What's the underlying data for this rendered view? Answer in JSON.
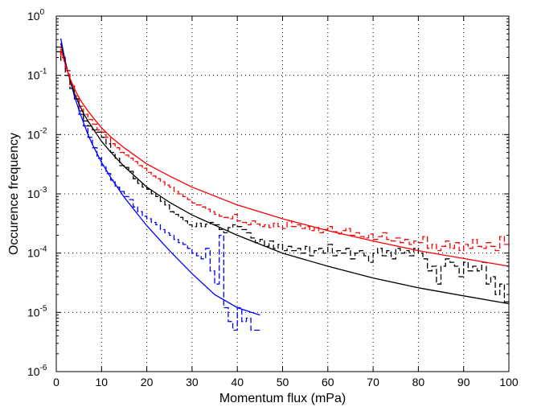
{
  "chart_data": {
    "type": "line",
    "title": "",
    "xlabel": "Momentum flux (mPa)",
    "ylabel": "Occurence frequency",
    "xlim": [
      0,
      100
    ],
    "ylim": [
      1e-06,
      1
    ],
    "yscale": "log",
    "grid": true,
    "x_ticks": [
      "0",
      "10",
      "20",
      "30",
      "40",
      "50",
      "60",
      "70",
      "80",
      "90",
      "100"
    ],
    "y_ticks": [
      {
        "base": "10",
        "exp": "-6",
        "value": 1e-06
      },
      {
        "base": "10",
        "exp": "-5",
        "value": 1e-05
      },
      {
        "base": "10",
        "exp": "-4",
        "value": 0.0001
      },
      {
        "base": "10",
        "exp": "-3",
        "value": 0.001
      },
      {
        "base": "10",
        "exp": "-2",
        "value": 0.01
      },
      {
        "base": "10",
        "exp": "-1",
        "value": 0.1
      },
      {
        "base": "10",
        "exp": "0",
        "value": 1
      }
    ],
    "series": [
      {
        "kind": "histogram",
        "color": "#0000ff",
        "style": "dashed",
        "bin_width": 1,
        "x": [
          0,
          1,
          2,
          3,
          4,
          5,
          6,
          7,
          8,
          9,
          10,
          11,
          12,
          13,
          14,
          15,
          16,
          17,
          18,
          19,
          20,
          21,
          22,
          23,
          24,
          25,
          26,
          27,
          28,
          29,
          30,
          31,
          32,
          33,
          34,
          35,
          36,
          37,
          38,
          39,
          40,
          41,
          42,
          43,
          44
        ],
        "y": [
          0.3,
          0.2,
          0.12,
          0.07,
          0.04,
          0.022,
          0.014,
          0.009,
          0.006,
          0.004,
          0.003,
          0.0022,
          0.0017,
          0.0013,
          0.0011,
          0.0009,
          0.0008,
          0.0006,
          0.0005,
          0.00042,
          0.00038,
          0.00033,
          0.0003,
          0.00025,
          0.00022,
          0.0002,
          0.00017,
          0.00015,
          0.00014,
          0.00012,
          0.0001,
          9e-05,
          8e-05,
          0.00012,
          5e-05,
          3e-05,
          0.0002,
          1.2e-05,
          7e-06,
          5e-06,
          1.2e-05,
          7e-06,
          8e-06,
          5e-06,
          5e-06
        ]
      },
      {
        "kind": "histogram",
        "color": "#000000",
        "style": "dashed",
        "bin_width": 1,
        "x": [
          0,
          1,
          2,
          3,
          4,
          5,
          6,
          7,
          8,
          9,
          10,
          11,
          12,
          13,
          14,
          15,
          16,
          17,
          18,
          19,
          20,
          21,
          22,
          23,
          24,
          25,
          26,
          27,
          28,
          29,
          30,
          31,
          32,
          33,
          34,
          35,
          36,
          37,
          38,
          39,
          40,
          41,
          42,
          43,
          44,
          45,
          46,
          47,
          48,
          49,
          50,
          51,
          52,
          53,
          54,
          55,
          56,
          57,
          58,
          59,
          60,
          61,
          62,
          63,
          64,
          65,
          66,
          67,
          68,
          69,
          70,
          71,
          72,
          73,
          74,
          75,
          76,
          77,
          78,
          79,
          80,
          81,
          82,
          83,
          84,
          85,
          86,
          87,
          88,
          89,
          90,
          91,
          92,
          93,
          94,
          95,
          96,
          97,
          98,
          99
        ],
        "y": [
          0.25,
          0.18,
          0.1,
          0.06,
          0.04,
          0.025,
          0.017,
          0.014,
          0.012,
          0.011,
          0.009,
          0.007,
          0.005,
          0.004,
          0.003,
          0.0028,
          0.0024,
          0.0018,
          0.0015,
          0.0013,
          0.0012,
          0.001,
          0.0009,
          0.00075,
          0.00065,
          0.0005,
          0.00045,
          0.0004,
          0.00035,
          0.0003,
          0.00028,
          0.00032,
          0.00028,
          0.00031,
          0.00033,
          0.0003,
          0.00025,
          0.00022,
          0.00027,
          0.0003,
          0.00028,
          0.00025,
          0.00022,
          0.00018,
          0.00015,
          0.00017,
          0.00013,
          0.00016,
          0.00012,
          0.00014,
          0.00011,
          0.00013,
          0.00011,
          0.00012,
          0.0001,
          0.00013,
          9e-05,
          0.00011,
          0.00012,
          0.0001,
          0.00014,
          9e-05,
          0.00011,
          0.0001,
          0.00012,
          8e-05,
          0.0001,
          0.00011,
          9e-05,
          7e-05,
          0.0001,
          0.00012,
          9e-05,
          0.00011,
          8e-05,
          0.00012,
          0.0001,
          0.00011,
          9e-05,
          0.00012,
          0.0001,
          8e-05,
          5e-05,
          6e-05,
          3e-05,
          6e-05,
          8e-05,
          7e-05,
          6e-05,
          4e-05,
          7e-05,
          5e-05,
          6e-05,
          5e-05,
          7e-05,
          3e-05,
          4e-05,
          2e-05,
          3e-05,
          1.5e-05
        ]
      },
      {
        "kind": "histogram",
        "color": "#ff0000",
        "style": "dashed",
        "bin_width": 1,
        "x": [
          0,
          1,
          2,
          3,
          4,
          5,
          6,
          7,
          8,
          9,
          10,
          11,
          12,
          13,
          14,
          15,
          16,
          17,
          18,
          19,
          20,
          21,
          22,
          23,
          24,
          25,
          26,
          27,
          28,
          29,
          30,
          31,
          32,
          33,
          34,
          35,
          36,
          37,
          38,
          39,
          40,
          41,
          42,
          43,
          44,
          45,
          46,
          47,
          48,
          49,
          50,
          51,
          52,
          53,
          54,
          55,
          56,
          57,
          58,
          59,
          60,
          61,
          62,
          63,
          64,
          65,
          66,
          67,
          68,
          69,
          70,
          71,
          72,
          73,
          74,
          75,
          76,
          77,
          78,
          79,
          80,
          81,
          82,
          83,
          84,
          85,
          86,
          87,
          88,
          89,
          90,
          91,
          92,
          93,
          94,
          95,
          96,
          97,
          98,
          99
        ],
        "y": [
          0.3,
          0.2,
          0.12,
          0.07,
          0.045,
          0.03,
          0.022,
          0.018,
          0.015,
          0.012,
          0.011,
          0.009,
          0.007,
          0.006,
          0.005,
          0.0045,
          0.004,
          0.0035,
          0.003,
          0.0027,
          0.0023,
          0.002,
          0.0018,
          0.0016,
          0.0014,
          0.0013,
          0.0011,
          0.001,
          0.0009,
          0.0008,
          0.0007,
          0.00065,
          0.0006,
          0.00055,
          0.0005,
          0.00045,
          0.00042,
          0.0004,
          0.00038,
          0.00045,
          0.00035,
          0.00033,
          0.0003,
          0.00035,
          0.00031,
          0.00028,
          0.0003,
          0.00027,
          0.00032,
          0.00028,
          0.00026,
          0.00035,
          0.00028,
          0.0003,
          0.00026,
          0.00028,
          0.00024,
          0.00027,
          0.00022,
          0.00025,
          0.00028,
          0.00023,
          0.00021,
          0.00024,
          0.00026,
          0.0002,
          0.00022,
          0.00019,
          0.00018,
          0.00021,
          0.00017,
          0.00019,
          0.00022,
          0.00017,
          0.00016,
          0.00018,
          0.00015,
          0.00017,
          0.00014,
          0.00016,
          0.00015,
          0.00019,
          0.00012,
          0.00014,
          0.00011,
          0.00013,
          0.00016,
          0.00012,
          0.00015,
          0.00011,
          0.00014,
          0.00012,
          0.00017,
          0.00013,
          0.00012,
          0.00015,
          0.00013,
          0.00011,
          0.00019,
          0.00014
        ]
      },
      {
        "kind": "fit",
        "color": "#0000ff",
        "style": "solid",
        "x": [
          1,
          2,
          3,
          4,
          5,
          6,
          7,
          8,
          10,
          12,
          15,
          20,
          25,
          30,
          35,
          40,
          45
        ],
        "y": [
          0.42,
          0.17,
          0.085,
          0.045,
          0.026,
          0.016,
          0.01,
          0.0068,
          0.0034,
          0.0019,
          0.00088,
          0.00029,
          0.00011,
          4.5e-05,
          2e-05,
          1.2e-05,
          9e-06
        ]
      },
      {
        "kind": "fit",
        "color": "#000000",
        "style": "solid",
        "x": [
          1,
          2,
          3,
          4,
          5,
          6,
          7,
          8,
          10,
          12,
          15,
          20,
          25,
          30,
          40,
          50,
          60,
          70,
          80,
          90,
          100
        ],
        "y": [
          0.35,
          0.16,
          0.085,
          0.05,
          0.033,
          0.023,
          0.017,
          0.013,
          0.0077,
          0.0051,
          0.0029,
          0.0013,
          0.00072,
          0.00044,
          0.0002,
          0.0001,
          6e-05,
          3.8e-05,
          2.6e-05,
          1.9e-05,
          1.4e-05
        ]
      },
      {
        "kind": "fit",
        "color": "#ff0000",
        "style": "solid",
        "x": [
          1,
          2,
          3,
          4,
          5,
          6,
          7,
          8,
          10,
          12,
          15,
          20,
          25,
          30,
          40,
          50,
          60,
          70,
          80,
          90,
          100
        ],
        "y": [
          0.28,
          0.15,
          0.09,
          0.06,
          0.042,
          0.032,
          0.025,
          0.02,
          0.013,
          0.0092,
          0.006,
          0.0032,
          0.002,
          0.0013,
          0.00065,
          0.00038,
          0.00024,
          0.00016,
          0.00011,
          8.1e-05,
          6e-05
        ]
      }
    ]
  }
}
